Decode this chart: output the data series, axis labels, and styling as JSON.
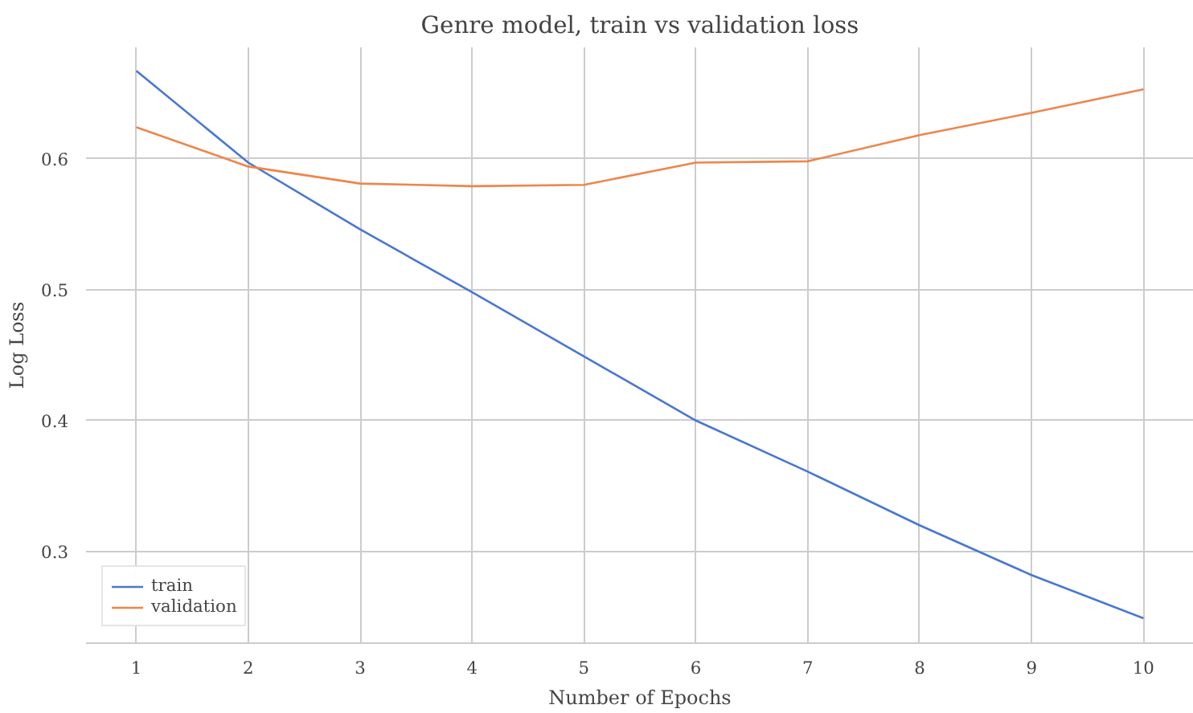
{
  "chart_data": {
    "type": "line",
    "title": "Genre model, train vs validation loss",
    "xlabel": "Number of Epochs",
    "ylabel": "Log Loss",
    "x": [
      1,
      2,
      3,
      4,
      5,
      6,
      7,
      8,
      9,
      10
    ],
    "series": [
      {
        "name": "train",
        "color": "#4878d0",
        "values": [
          0.667,
          0.597,
          0.546,
          0.498,
          0.449,
          0.4,
          0.361,
          0.32,
          0.282,
          0.249
        ]
      },
      {
        "name": "validation",
        "color": "#ee854a",
        "values": [
          0.624,
          0.594,
          0.581,
          0.579,
          0.58,
          0.597,
          0.598,
          0.618,
          0.635,
          0.653
        ]
      }
    ],
    "xlim": [
      0.55,
      10.45
    ],
    "ylim": [
      0.23,
      0.685
    ],
    "xticks": [
      1,
      2,
      3,
      4,
      5,
      6,
      7,
      8,
      9,
      10
    ],
    "yticks": [
      0.3,
      0.4,
      0.5,
      0.6
    ],
    "grid": true,
    "legend": "bottom left",
    "marker": "none",
    "line_style": "solid"
  }
}
